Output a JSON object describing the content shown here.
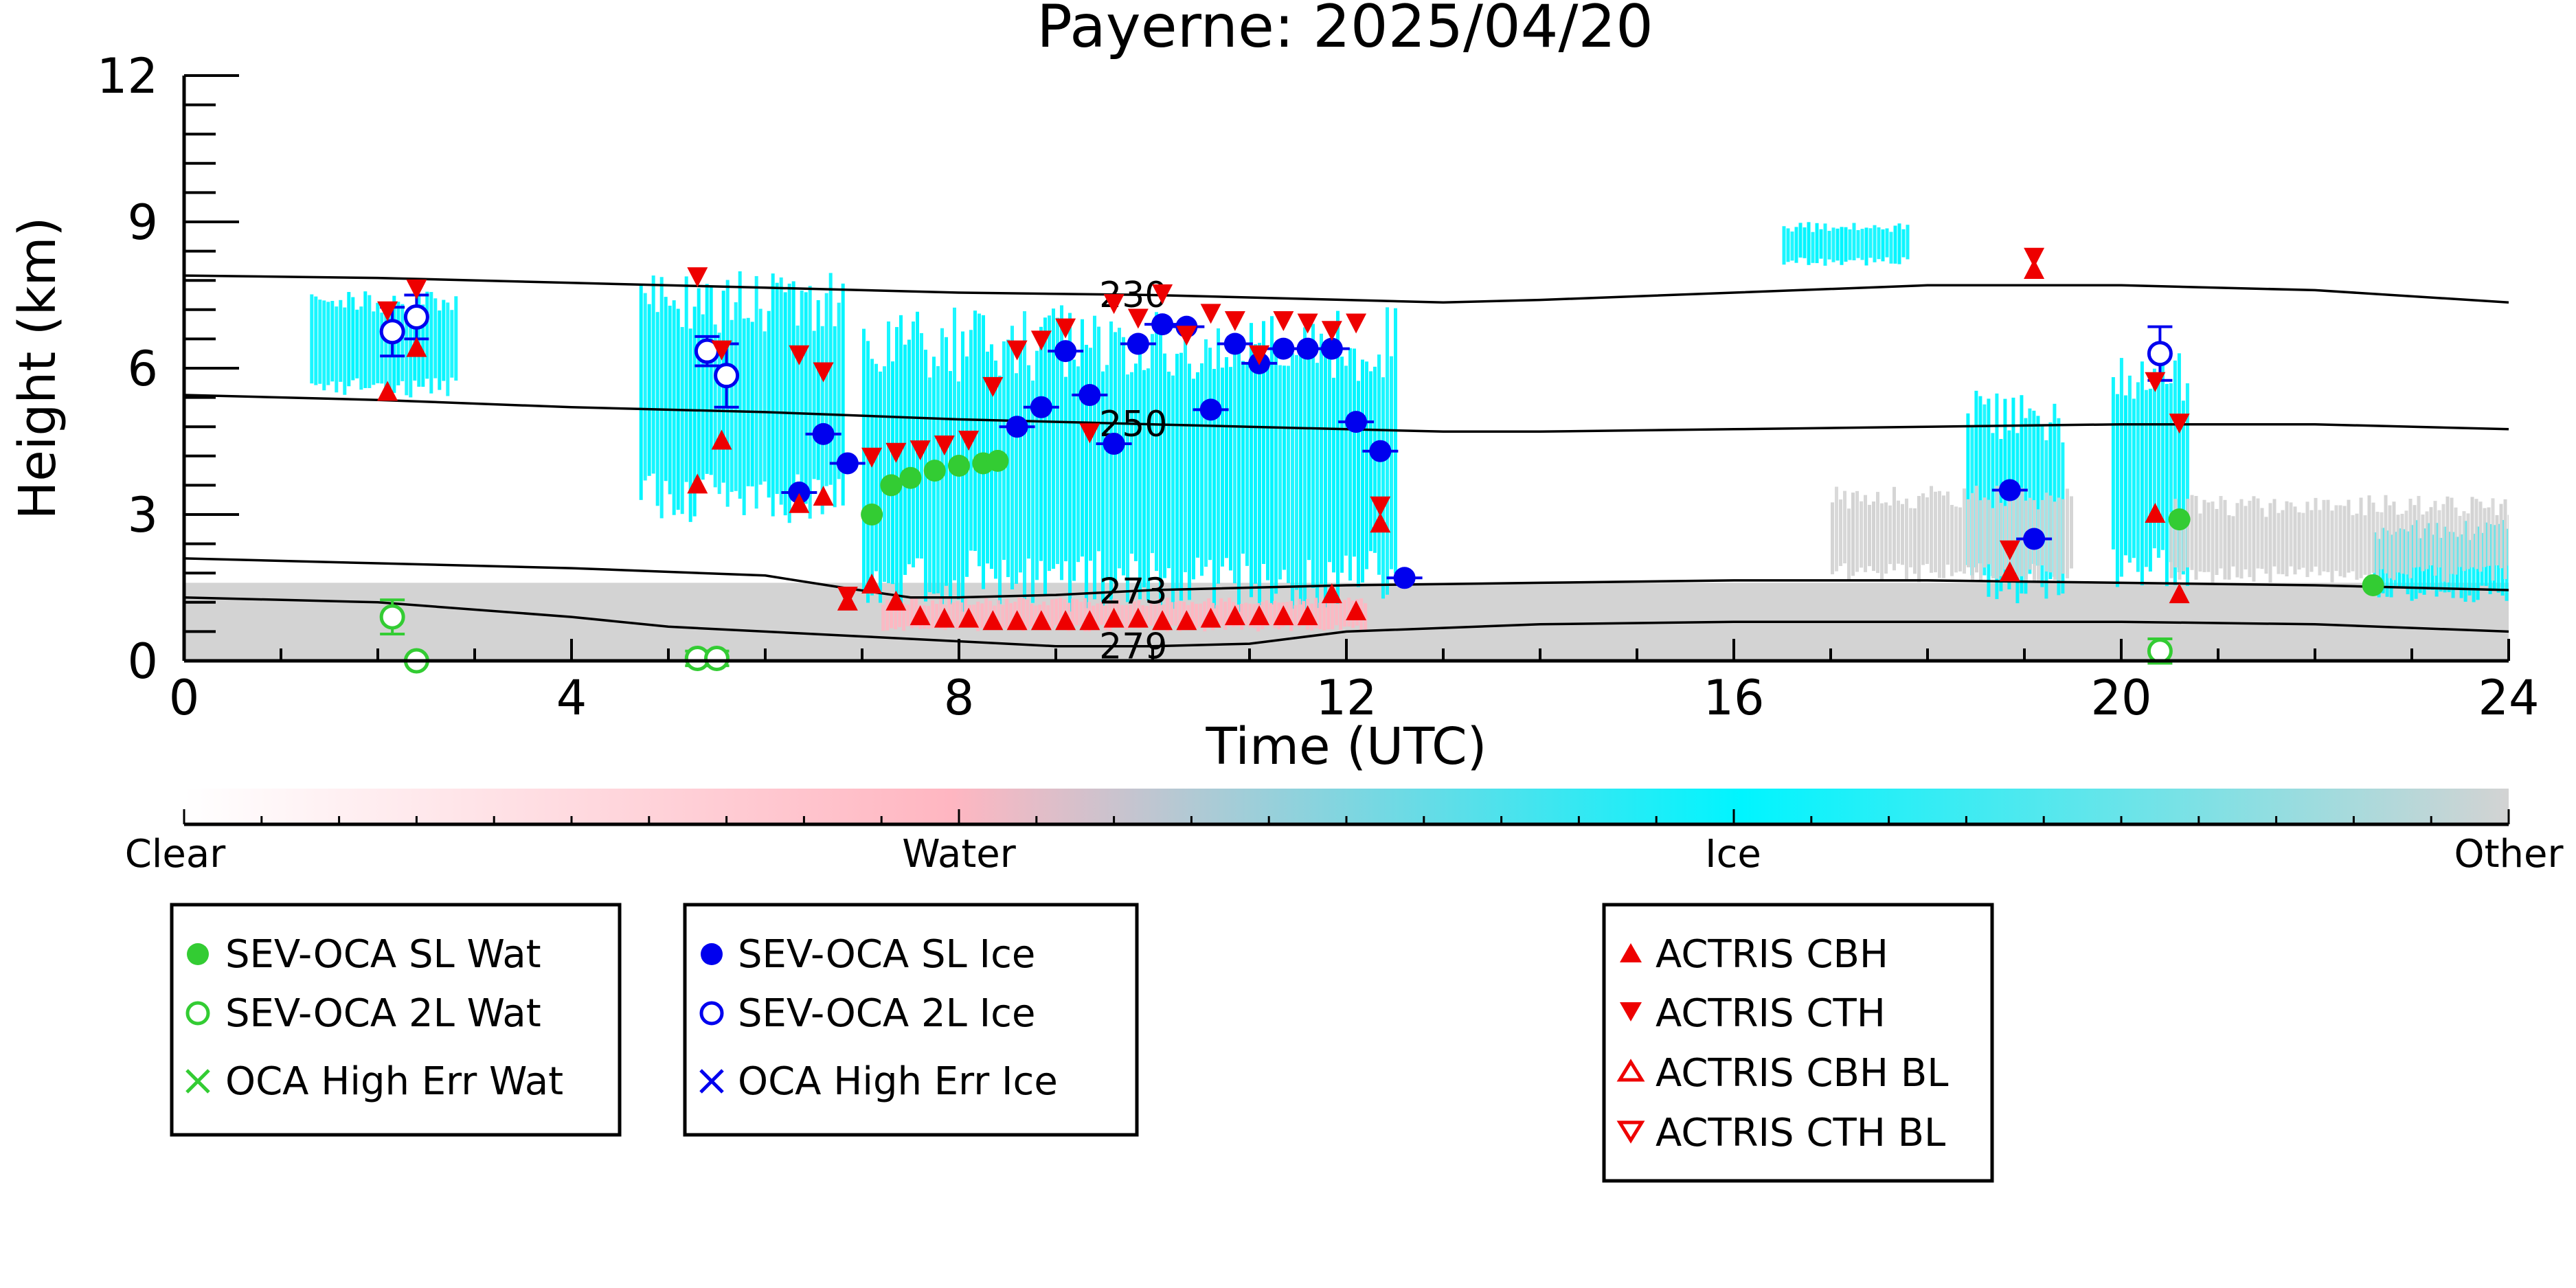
{
  "chart_data": {
    "type": "scatter",
    "title": "Payerne: 2025/04/20",
    "xlabel": "Time (UTC)",
    "ylabel": "Height (km)",
    "xlim": [
      0,
      24
    ],
    "ylim": [
      0,
      12
    ],
    "xticks": [
      0,
      4,
      8,
      12,
      16,
      20,
      24
    ],
    "yticks": [
      0,
      3,
      6,
      9,
      12
    ],
    "colors": {
      "sl_wat": "#33cc33",
      "sl_ice": "#0000ee",
      "actris": "#ee0000",
      "ice": "#00f5ff",
      "water": "#ffb6c1",
      "other": "#d3d3d3",
      "contour": "#000000"
    },
    "colorbar": {
      "labels": [
        "Clear",
        "Water",
        "Ice",
        "Other"
      ],
      "stops": [
        "#ffffff",
        "#ffb6c1",
        "#00f5ff",
        "#d3d3d3"
      ]
    },
    "isotherms": [
      {
        "label": "230",
        "label_x": 9.8,
        "x": [
          0,
          2,
          4,
          6,
          8,
          10,
          12,
          13,
          14,
          16,
          18,
          20,
          22,
          24
        ],
        "y": [
          7.9,
          7.85,
          7.75,
          7.65,
          7.55,
          7.5,
          7.4,
          7.35,
          7.4,
          7.55,
          7.7,
          7.7,
          7.6,
          7.35
        ]
      },
      {
        "label": "250",
        "label_x": 9.8,
        "x": [
          0,
          2,
          4,
          6,
          8,
          10,
          12,
          13,
          14,
          16,
          18,
          20,
          22,
          24
        ],
        "y": [
          5.45,
          5.35,
          5.2,
          5.1,
          4.95,
          4.85,
          4.75,
          4.7,
          4.7,
          4.75,
          4.8,
          4.85,
          4.85,
          4.75
        ]
      },
      {
        "label": "273",
        "label_x": 9.8,
        "x": [
          0,
          2,
          4,
          6,
          6.8,
          7.5,
          8,
          9,
          10,
          12,
          14,
          16,
          18,
          20,
          22,
          24
        ],
        "y": [
          2.1,
          2.0,
          1.9,
          1.75,
          1.5,
          1.3,
          1.3,
          1.35,
          1.45,
          1.55,
          1.6,
          1.65,
          1.65,
          1.6,
          1.55,
          1.45
        ]
      },
      {
        "label": "279",
        "label_x": 9.8,
        "x": [
          0,
          2,
          4,
          5,
          6,
          7,
          8,
          9,
          10,
          11,
          12,
          14,
          16,
          18,
          20,
          22,
          24
        ],
        "y": [
          1.3,
          1.2,
          0.9,
          0.7,
          0.6,
          0.5,
          0.4,
          0.3,
          0.3,
          0.35,
          0.6,
          0.75,
          0.8,
          0.8,
          0.8,
          0.75,
          0.6
        ]
      }
    ],
    "series": [
      {
        "name": "SEV-OCA SL Wat",
        "marker": "filled-circle",
        "color": "#33cc33",
        "x": [
          7.1,
          7.3,
          7.5,
          7.75,
          8.0,
          8.25,
          8.4,
          20.6,
          22.6
        ],
        "y": [
          3.0,
          3.6,
          3.75,
          3.9,
          4.0,
          4.05,
          4.1,
          2.9,
          1.55
        ]
      },
      {
        "name": "SEV-OCA 2L Wat",
        "marker": "open-circle",
        "color": "#33cc33",
        "x": [
          2.15,
          2.4,
          5.3,
          5.5,
          20.4
        ],
        "y": [
          0.9,
          0.0,
          0.05,
          0.05,
          0.2
        ],
        "err": [
          0.35,
          0.0,
          0.15,
          0.15,
          0.25
        ]
      },
      {
        "name": "OCA High Err Wat",
        "marker": "x",
        "color": "#33cc33",
        "x": [],
        "y": []
      },
      {
        "name": "SEV-OCA SL Ice",
        "marker": "filled-circle",
        "color": "#0000ee",
        "x": [
          6.35,
          6.6,
          6.85,
          8.6,
          8.85,
          9.1,
          9.35,
          9.6,
          9.85,
          10.1,
          10.35,
          10.6,
          10.85,
          11.1,
          11.35,
          11.6,
          11.85,
          12.1,
          12.35,
          12.6,
          18.85,
          19.1
        ],
        "y": [
          3.45,
          4.65,
          4.05,
          4.8,
          5.2,
          6.35,
          5.45,
          4.45,
          6.5,
          6.9,
          6.85,
          5.15,
          6.5,
          6.1,
          6.4,
          6.4,
          6.4,
          4.9,
          4.3,
          1.7,
          3.5,
          2.5
        ]
      },
      {
        "name": "SEV-OCA 2L Ice",
        "marker": "open-circle",
        "color": "#0000ee",
        "x": [
          2.15,
          2.4,
          5.4,
          5.6,
          20.4
        ],
        "y": [
          6.75,
          7.05,
          6.35,
          5.85,
          6.3
        ],
        "err": [
          0.5,
          0.45,
          0.3,
          0.65,
          0.55
        ]
      },
      {
        "name": "OCA High Err Ice",
        "marker": "x",
        "color": "#0000ee",
        "x": [],
        "y": []
      },
      {
        "name": "ACTRIS CBH",
        "marker": "filled-triangle-up",
        "color": "#ee0000",
        "x": [
          2.1,
          2.4,
          5.3,
          5.55,
          6.35,
          6.6,
          6.85,
          7.1,
          7.35,
          7.6,
          7.85,
          8.1,
          8.35,
          8.6,
          8.85,
          9.1,
          9.35,
          9.6,
          9.85,
          10.1,
          10.35,
          10.6,
          10.85,
          11.1,
          11.35,
          11.6,
          11.85,
          12.1,
          12.35,
          18.85,
          19.1,
          20.35,
          20.6
        ],
        "y": [
          5.5,
          6.4,
          3.6,
          4.5,
          3.2,
          3.35,
          1.2,
          1.55,
          1.2,
          0.9,
          0.85,
          0.85,
          0.8,
          0.8,
          0.8,
          0.8,
          0.8,
          0.85,
          0.85,
          0.8,
          0.8,
          0.85,
          0.9,
          0.9,
          0.9,
          0.9,
          1.35,
          1.0,
          2.8,
          1.8,
          8.0,
          3.0,
          1.35
        ]
      },
      {
        "name": "ACTRIS CTH",
        "marker": "filled-triangle-down",
        "color": "#ee0000",
        "x": [
          2.1,
          2.4,
          5.3,
          5.55,
          6.35,
          6.6,
          6.85,
          7.1,
          7.35,
          7.6,
          7.85,
          8.1,
          8.35,
          8.6,
          8.85,
          9.1,
          9.35,
          9.6,
          9.85,
          10.1,
          10.35,
          10.6,
          10.85,
          11.1,
          11.35,
          11.6,
          11.85,
          12.1,
          12.35,
          18.85,
          19.1,
          20.35,
          20.6
        ],
        "y": [
          7.2,
          7.65,
          7.9,
          6.4,
          6.3,
          5.95,
          1.35,
          4.2,
          4.3,
          4.35,
          4.45,
          4.55,
          5.65,
          6.4,
          6.6,
          6.85,
          4.7,
          7.35,
          7.05,
          7.55,
          6.7,
          7.15,
          7.0,
          6.3,
          7.0,
          6.95,
          6.8,
          6.95,
          3.2,
          2.3,
          8.3,
          5.75,
          4.9
        ]
      },
      {
        "name": "ACTRIS CBH BL",
        "marker": "open-triangle-up",
        "color": "#ee0000",
        "x": [],
        "y": []
      },
      {
        "name": "ACTRIS CTH BL",
        "marker": "open-triangle-down",
        "color": "#ee0000",
        "x": [],
        "y": []
      }
    ],
    "background_regions": [
      {
        "class": "Other",
        "t0": 0.0,
        "t1": 24.0,
        "h0": 0.0,
        "h1": 1.6
      },
      {
        "class": "Ice",
        "t0": 1.3,
        "t1": 2.8,
        "h0": 5.4,
        "h1": 7.6
      },
      {
        "class": "Ice",
        "t0": 4.7,
        "t1": 6.8,
        "h0": 2.8,
        "h1": 8.0
      },
      {
        "class": "Ice",
        "t0": 7.0,
        "t1": 12.5,
        "h0": 1.0,
        "h1": 7.3
      },
      {
        "class": "Ice",
        "t0": 16.5,
        "t1": 17.8,
        "h0": 8.1,
        "h1": 9.0
      },
      {
        "class": "Ice",
        "t0": 18.4,
        "t1": 19.4,
        "h0": 1.1,
        "h1": 5.6
      },
      {
        "class": "Ice",
        "t0": 19.9,
        "t1": 20.7,
        "h0": 1.5,
        "h1": 6.5
      },
      {
        "class": "Ice",
        "t0": 22.6,
        "t1": 24.0,
        "h0": 1.2,
        "h1": 2.9
      },
      {
        "class": "Other",
        "t0": 17.0,
        "t1": 19.5,
        "h0": 1.6,
        "h1": 3.6
      },
      {
        "class": "Other",
        "t0": 20.5,
        "t1": 24.0,
        "h0": 1.6,
        "h1": 3.4
      },
      {
        "class": "Water",
        "t0": 7.2,
        "t1": 12.2,
        "h0": 0.6,
        "h1": 1.3
      }
    ],
    "legends": [
      [
        "SEV-OCA SL Wat",
        "SEV-OCA 2L Wat",
        "OCA High Err Wat"
      ],
      [
        "SEV-OCA SL Ice",
        "SEV-OCA 2L Ice",
        "OCA High Err Ice"
      ],
      [
        "ACTRIS CBH",
        "ACTRIS CTH",
        "ACTRIS CBH BL",
        "ACTRIS CTH BL"
      ]
    ]
  }
}
